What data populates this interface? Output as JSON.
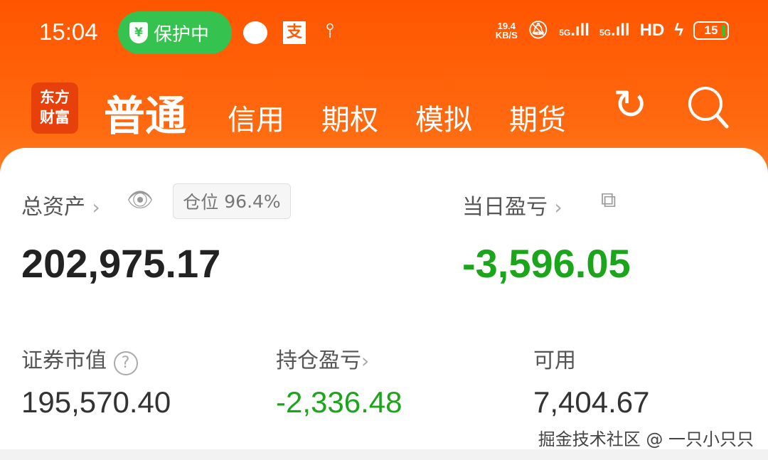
{
  "status_bar": {
    "time": "15:04",
    "protection": "保护中",
    "shield_symbol": "¥",
    "alipay_symbol": "支",
    "net_speed": "19.4",
    "net_unit": "KB/S",
    "signal1": "5G",
    "signal2": "5G",
    "hd": "HD",
    "battery": "15"
  },
  "nav": {
    "logo": [
      "东方",
      "财富"
    ],
    "tabs": [
      "普通",
      "信用",
      "期权",
      "模拟",
      "期货"
    ]
  },
  "account": {
    "total_assets_label": "总资产",
    "position_label": "仓位",
    "position_value": "96.4%",
    "total_assets": "202,975.17",
    "daily_pnl_label": "当日盈亏",
    "daily_pnl": "-3,596.05",
    "market_value_label": "证券市值",
    "market_value": "195,570.40",
    "holding_pnl_label": "持仓盈亏",
    "holding_pnl": "-2,336.48",
    "available_label": "可用",
    "available": "7,404.67"
  },
  "colors": {
    "brand": "#ff5a00",
    "loss": "#1aa51a",
    "protection": "#35c24f"
  },
  "watermark": "掘金技术社区 @ 一只小只只"
}
